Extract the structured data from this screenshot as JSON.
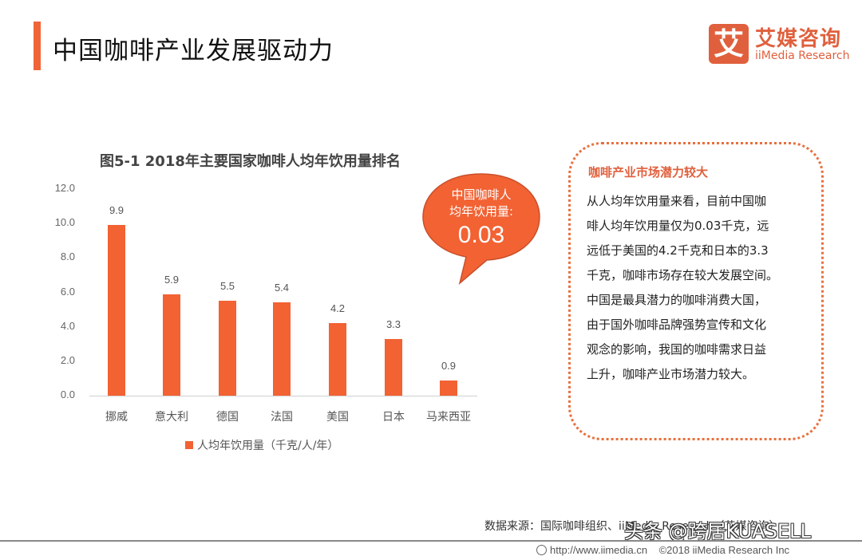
{
  "header": {
    "title": "中国咖啡产业发展驱动力",
    "accent_color": "#f0643a"
  },
  "logo": {
    "icon_glyph": "艾",
    "name_cn": "艾媒咨询",
    "name_en": "iiMedia Research",
    "brand_color": "#e0603d"
  },
  "chart_data": {
    "type": "bar",
    "title": "图5-1 2018年主要国家咖啡人均年饮用量排名",
    "categories": [
      "挪威",
      "意大利",
      "德国",
      "法国",
      "美国",
      "日本",
      "马来西亚"
    ],
    "series": [
      {
        "name": "人均年饮用量（千克/人/年）",
        "values": [
          9.9,
          5.9,
          5.5,
          5.4,
          4.2,
          3.3,
          0.9
        ],
        "color": "#f26233"
      }
    ],
    "value_labels": [
      "9.9",
      "5.9",
      "5.5",
      "5.4",
      "4.2",
      "3.3",
      "0.9"
    ],
    "xlabel": "",
    "ylabel": "",
    "ylim": [
      0,
      12
    ],
    "yticks": [
      "0.0",
      "2.0",
      "4.0",
      "6.0",
      "8.0",
      "10.0",
      "12.0"
    ],
    "grid": false,
    "legend_position": "bottom"
  },
  "callout": {
    "label": "中国咖啡人均年饮用量:",
    "label_line1": "中国咖啡人",
    "label_line2": "均年饮用量:",
    "value": "0.03",
    "color": "#f26233"
  },
  "insight": {
    "title": "咖啡产业市场潜力较大",
    "lines": [
      "从人均年饮用量来看，目前中国咖",
      "啡人均年饮用量仅为0.03千克，远",
      "远低于美国的4.2千克和日本的3.3",
      "千克，咖啡市场存在较大发展空间。",
      "中国是最具潜力的咖啡消费大国，",
      "由于国外咖啡品牌强势宣传和文化",
      "观念的影响，我国的咖啡需求日益",
      "上升，咖啡产业市场潜力较大。"
    ]
  },
  "source": "数据来源：国际咖啡组织、iiMedia Research（艾媒咨询）",
  "footer": {
    "url": "http://www.iimedia.cn",
    "copyright": "©2018  iiMedia Research  Inc"
  },
  "watermark": "头条 @跨居KUASELL"
}
